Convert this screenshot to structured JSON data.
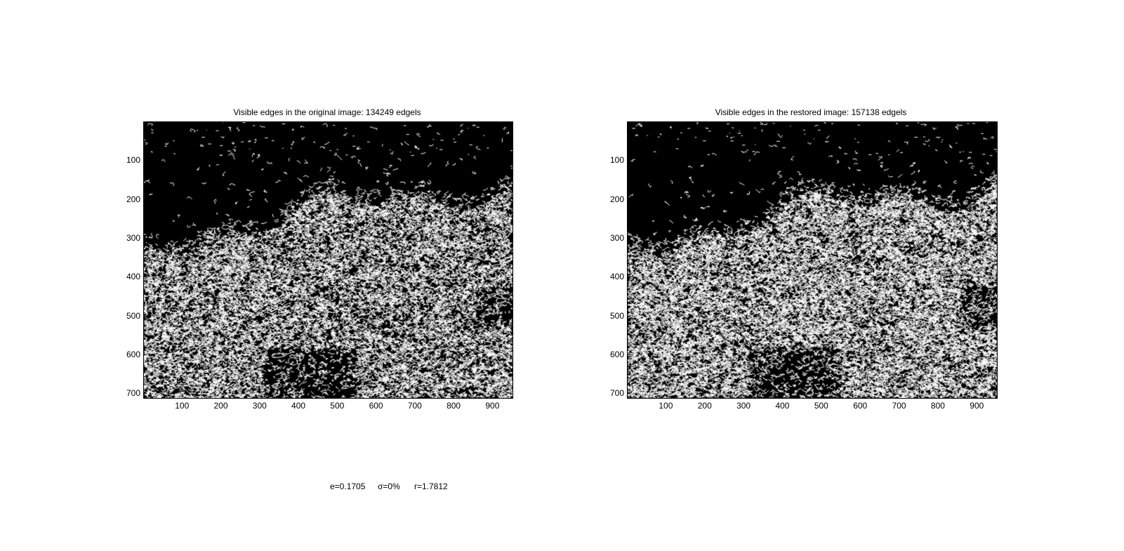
{
  "panels": [
    {
      "title": "Visible edges in the original image: 134249 edgels",
      "image_description_name": "edge-map-original",
      "x_ticks": [
        "100",
        "200",
        "300",
        "400",
        "500",
        "600",
        "700",
        "800",
        "900"
      ],
      "y_ticks": [
        "100",
        "200",
        "300",
        "400",
        "500",
        "600",
        "700"
      ],
      "x_range": [
        0,
        950
      ],
      "y_range": [
        0,
        710
      ],
      "edge_color": "#ffffff",
      "background_color": "#000000"
    },
    {
      "title": "Visible edges in the restored image: 157138 edgels",
      "image_description_name": "edge-map-restored",
      "x_ticks": [
        "100",
        "200",
        "300",
        "400",
        "500",
        "600",
        "700",
        "800",
        "900"
      ],
      "y_ticks": [
        "100",
        "200",
        "300",
        "400",
        "500",
        "600",
        "700"
      ],
      "x_range": [
        0,
        950
      ],
      "y_range": [
        0,
        710
      ],
      "edge_color": "#ffffff",
      "background_color": "#000000"
    }
  ],
  "footer": {
    "e_text": "e=0.1705",
    "sigma_text": "σ=0%",
    "r_text": "r=1.7812"
  }
}
